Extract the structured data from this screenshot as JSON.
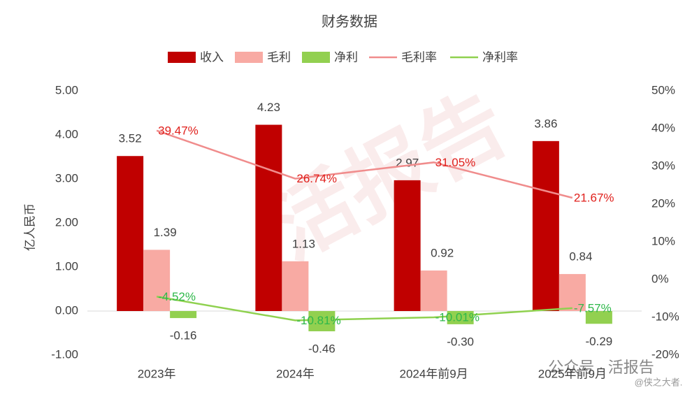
{
  "chart_data": {
    "type": "bar-line",
    "title": "财务数据",
    "y_label": "亿人民币",
    "categories": [
      "2023年",
      "2024年",
      "2024年前9月",
      "2025年前9月"
    ],
    "series": [
      {
        "name": "收入",
        "type": "bar",
        "color": "#c00000",
        "values": [
          3.52,
          4.23,
          2.97,
          3.86
        ],
        "value_labels": [
          "3.52",
          "4.23",
          "2.97",
          "3.86"
        ]
      },
      {
        "name": "毛利",
        "type": "bar",
        "color": "#f8aaa3",
        "values": [
          1.39,
          1.13,
          0.92,
          0.84
        ],
        "value_labels": [
          "1.39",
          "1.13",
          "0.92",
          "0.84"
        ]
      },
      {
        "name": "净利",
        "type": "bar",
        "color": "#92d050",
        "values": [
          -0.16,
          -0.46,
          -0.3,
          -0.29
        ],
        "value_labels": [
          "-0.16",
          "-0.46",
          "-0.30",
          "-0.29"
        ]
      },
      {
        "name": "毛利率",
        "type": "line",
        "axis": "y2",
        "color": "#f08c8c",
        "label_color": "#e0201c",
        "values": [
          39.47,
          26.74,
          31.05,
          21.67
        ],
        "value_labels": [
          "39.47%",
          "26.74%",
          "31.05%",
          "21.67%"
        ]
      },
      {
        "name": "净利率",
        "type": "line",
        "axis": "y2",
        "color": "#8fd14f",
        "label_color": "#2eb84a",
        "values": [
          -4.52,
          -10.81,
          -10.01,
          -7.57
        ],
        "value_labels": [
          "-4.52%",
          "-10.81%",
          "-10.01%",
          "-7.57%"
        ]
      }
    ],
    "ylim": [
      -1,
      5
    ],
    "yticks": [
      {
        "value": -1,
        "label": "-1.00"
      },
      {
        "value": 0,
        "label": "0.00"
      },
      {
        "value": 1,
        "label": "1.00"
      },
      {
        "value": 2,
        "label": "2.00"
      },
      {
        "value": 3,
        "label": "3.00"
      },
      {
        "value": 4,
        "label": "4.00"
      },
      {
        "value": 5,
        "label": "5.00"
      }
    ],
    "y2lim": [
      -20,
      50
    ],
    "y2ticks": [
      {
        "value": -20,
        "label": "-20%"
      },
      {
        "value": -10,
        "label": "-10%"
      },
      {
        "value": 0,
        "label": "0%"
      },
      {
        "value": 10,
        "label": "10%"
      },
      {
        "value": 20,
        "label": "20%"
      },
      {
        "value": 30,
        "label": "30%"
      },
      {
        "value": 40,
        "label": "40%"
      },
      {
        "value": 50,
        "label": "50%"
      }
    ],
    "watermarks": [
      "活报告",
      "公众号 · 活报告",
      "@侠之大者."
    ]
  }
}
